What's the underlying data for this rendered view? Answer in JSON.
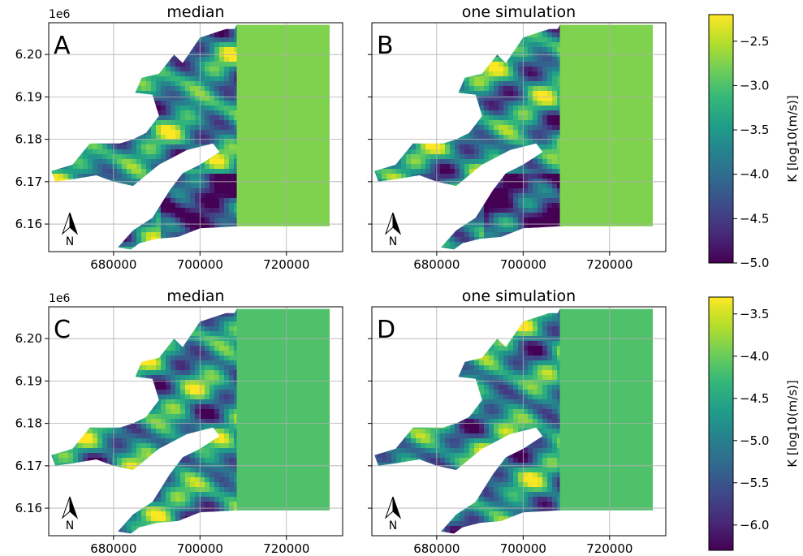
{
  "colors": {
    "viridis": [
      "#440154",
      "#482878",
      "#3e4989",
      "#31688e",
      "#26828e",
      "#1f9e89",
      "#35b779",
      "#6ece58",
      "#b5de2b",
      "#fde725"
    ]
  },
  "chart_data": [
    {
      "type": "heatmap",
      "panel": "A",
      "title": "median",
      "x_ticks": [
        680000,
        700000,
        720000
      ],
      "x_tick_labels": [
        "680000",
        "700000",
        "720000"
      ],
      "y_ticks": [
        6.16,
        6.17,
        6.18,
        6.19,
        6.2
      ],
      "y_tick_labels": [
        "6.16",
        "6.17",
        "6.18",
        "6.19",
        "6.20"
      ],
      "y_offset_label": "1e6",
      "xlim": [
        665000,
        733000
      ],
      "ylim": [
        6.1535,
        6.2075
      ],
      "grid": true,
      "colorbar_group": "top",
      "fill_value": -2.75
    },
    {
      "type": "heatmap",
      "panel": "B",
      "title": "one simulation",
      "x_ticks": [
        680000,
        700000,
        720000
      ],
      "x_tick_labels": [
        "680000",
        "700000",
        "720000"
      ],
      "y_ticks": [
        6.16,
        6.17,
        6.18,
        6.19,
        6.2
      ],
      "xlim": [
        665000,
        733000
      ],
      "ylim": [
        6.1535,
        6.2075
      ],
      "grid": true,
      "colorbar_group": "top",
      "fill_value": -2.75
    },
    {
      "type": "heatmap",
      "panel": "C",
      "title": "median",
      "x_ticks": [
        680000,
        700000,
        720000
      ],
      "x_tick_labels": [
        "680000",
        "700000",
        "720000"
      ],
      "y_ticks": [
        6.16,
        6.17,
        6.18,
        6.19,
        6.2
      ],
      "y_tick_labels": [
        "6.16",
        "6.17",
        "6.18",
        "6.19",
        "6.20"
      ],
      "y_offset_label": "1e6",
      "xlim": [
        665000,
        733000
      ],
      "ylim": [
        6.1535,
        6.2075
      ],
      "grid": true,
      "colorbar_group": "bottom",
      "fill_value": -4.15
    },
    {
      "type": "heatmap",
      "panel": "D",
      "title": "one simulation",
      "x_ticks": [
        680000,
        700000,
        720000
      ],
      "x_tick_labels": [
        "680000",
        "700000",
        "720000"
      ],
      "y_ticks": [
        6.16,
        6.17,
        6.18,
        6.19,
        6.2
      ],
      "xlim": [
        665000,
        733000
      ],
      "ylim": [
        6.1535,
        6.2075
      ],
      "grid": true,
      "colorbar_group": "bottom",
      "fill_value": -4.15
    }
  ],
  "colorbars": [
    {
      "id": "top",
      "label": "K  [log10(m/s)]",
      "range": [
        -5.0,
        -2.2
      ],
      "ticks": [
        -5.0,
        -4.5,
        -4.0,
        -3.5,
        -3.0,
        -2.5
      ],
      "tick_labels": [
        "−5.0",
        "−4.5",
        "−4.0",
        "−3.5",
        "−3.0",
        "−2.5"
      ]
    },
    {
      "id": "bottom",
      "label": "K  [log10(m/s)]",
      "range": [
        -6.3,
        -3.3
      ],
      "ticks": [
        -6.0,
        -5.5,
        -5.0,
        -4.5,
        -4.0,
        -3.5
      ],
      "tick_labels": [
        "−6.0",
        "−5.5",
        "−5.0",
        "−4.5",
        "−4.0",
        "−3.5"
      ]
    }
  ],
  "north_arrow_label": "N"
}
